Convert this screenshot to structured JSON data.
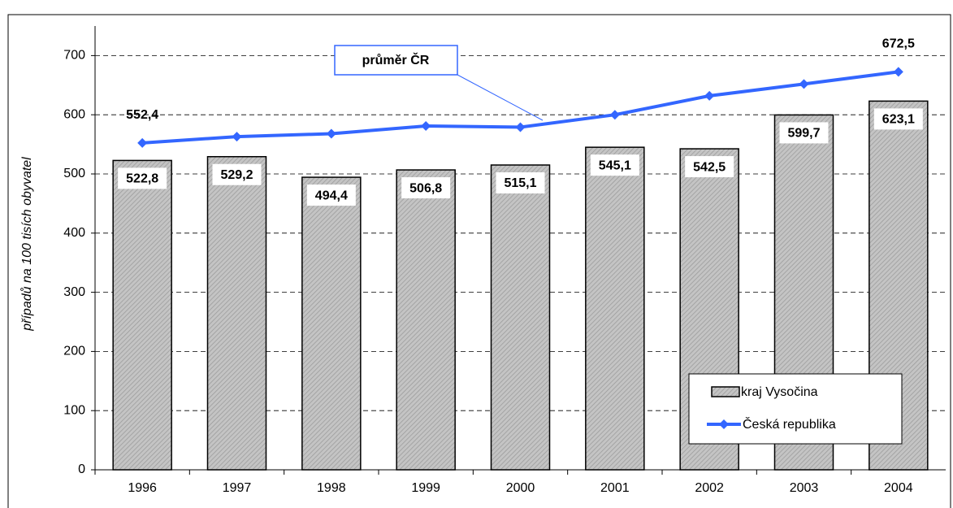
{
  "chart_data": {
    "type": "bar_line",
    "ylabel": "případů na 100 tisích obyvatel",
    "annotation": "průměr ČR",
    "categories": [
      "1996",
      "1997",
      "1998",
      "1999",
      "2000",
      "2001",
      "2002",
      "2003",
      "2004"
    ],
    "series": [
      {
        "name": "kraj Vysočina",
        "type": "bar",
        "color": "#b8b8b8",
        "values": [
          522.8,
          529.2,
          494.4,
          506.8,
          515.1,
          545.1,
          542.5,
          599.7,
          623.1
        ],
        "value_labels": [
          "522,8",
          "529,2",
          "494,4",
          "506,8",
          "515,1",
          "545,1",
          "542,5",
          "599,7",
          "623,1"
        ]
      },
      {
        "name": "Česká republika",
        "type": "line",
        "color": "#3366ff",
        "values": [
          552.4,
          563,
          568,
          581,
          579,
          600,
          632,
          652,
          672.5
        ],
        "value_labels": [
          "552,4",
          null,
          null,
          null,
          null,
          null,
          null,
          null,
          "672,5"
        ]
      }
    ],
    "ylim": [
      0,
      750
    ],
    "yticks": [
      0,
      100,
      200,
      300,
      400,
      500,
      600,
      700
    ],
    "grid": true
  }
}
